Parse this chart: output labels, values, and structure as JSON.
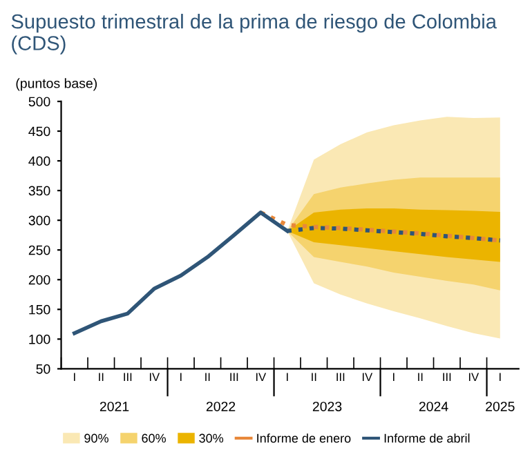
{
  "chart_data": {
    "type": "line",
    "title": "Supuesto trimestral de la prima de riesgo de Colombia (CDS)",
    "ylabel": "(puntos base)",
    "categories": [
      "I",
      "II",
      "III",
      "IV",
      "I",
      "II",
      "III",
      "IV",
      "I",
      "II",
      "III",
      "IV",
      "I",
      "II",
      "III",
      "IV",
      "I"
    ],
    "annotations": [
      "2021",
      "2022",
      "2023",
      "2024",
      "2025"
    ],
    "ylim": [
      50,
      500
    ],
    "yticks": [
      50,
      100,
      150,
      200,
      250,
      300,
      350,
      400,
      450,
      500
    ],
    "grid": false,
    "legend": "bottom",
    "series": [
      {
        "name": "90%",
        "color": "#fae8b4",
        "values": [
          null,
          null,
          null,
          null,
          null,
          null,
          null,
          null,
          null,
          null,
          null,
          null,
          null,
          null,
          null,
          null,
          null
        ],
        "lower": [
          null,
          null,
          null,
          null,
          null,
          null,
          null,
          null,
          282,
          194,
          175,
          160,
          147,
          135,
          122,
          110,
          101
        ],
        "upper": [
          null,
          null,
          null,
          null,
          null,
          null,
          null,
          null,
          282,
          402,
          428,
          448,
          460,
          468,
          474,
          472,
          473
        ]
      },
      {
        "name": "60%",
        "color": "#f5d36e",
        "values": [
          null,
          null,
          null,
          null,
          null,
          null,
          null,
          null,
          null,
          null,
          null,
          null,
          null,
          null,
          null,
          null,
          null
        ],
        "lower": [
          null,
          null,
          null,
          null,
          null,
          null,
          null,
          null,
          282,
          238,
          230,
          222,
          212,
          205,
          198,
          192,
          182
        ],
        "upper": [
          null,
          null,
          null,
          null,
          null,
          null,
          null,
          null,
          282,
          344,
          355,
          362,
          368,
          372,
          372,
          372,
          372
        ]
      },
      {
        "name": "30%",
        "color": "#ebb400",
        "values": [
          null,
          null,
          null,
          null,
          null,
          null,
          null,
          null,
          null,
          null,
          null,
          null,
          null,
          null,
          null,
          null,
          null
        ],
        "lower": [
          null,
          null,
          null,
          null,
          null,
          null,
          null,
          null,
          282,
          263,
          258,
          253,
          248,
          243,
          238,
          234,
          230
        ],
        "upper": [
          null,
          null,
          null,
          null,
          null,
          null,
          null,
          null,
          282,
          313,
          318,
          320,
          320,
          318,
          317,
          316,
          314
        ]
      },
      {
        "name": "Informe de enero",
        "line_style": "dotted",
        "color": "#e8883a",
        "values": [
          null,
          null,
          null,
          null,
          null,
          null,
          null,
          313,
          292,
          289,
          287,
          284,
          281,
          278,
          274,
          270,
          266
        ]
      },
      {
        "name": "Informe de abril",
        "line_style": "solid",
        "color": "#2f5577",
        "values": [
          110,
          130,
          143,
          185,
          207,
          238,
          275,
          313,
          282,
          null,
          null,
          null,
          null,
          null,
          null,
          null,
          null
        ]
      },
      {
        "line_style": "dotted",
        "color": "#2f5577",
        "values": [
          null,
          null,
          null,
          null,
          null,
          null,
          null,
          null,
          282,
          287,
          286,
          283,
          280,
          277,
          273,
          270,
          266
        ]
      }
    ]
  }
}
